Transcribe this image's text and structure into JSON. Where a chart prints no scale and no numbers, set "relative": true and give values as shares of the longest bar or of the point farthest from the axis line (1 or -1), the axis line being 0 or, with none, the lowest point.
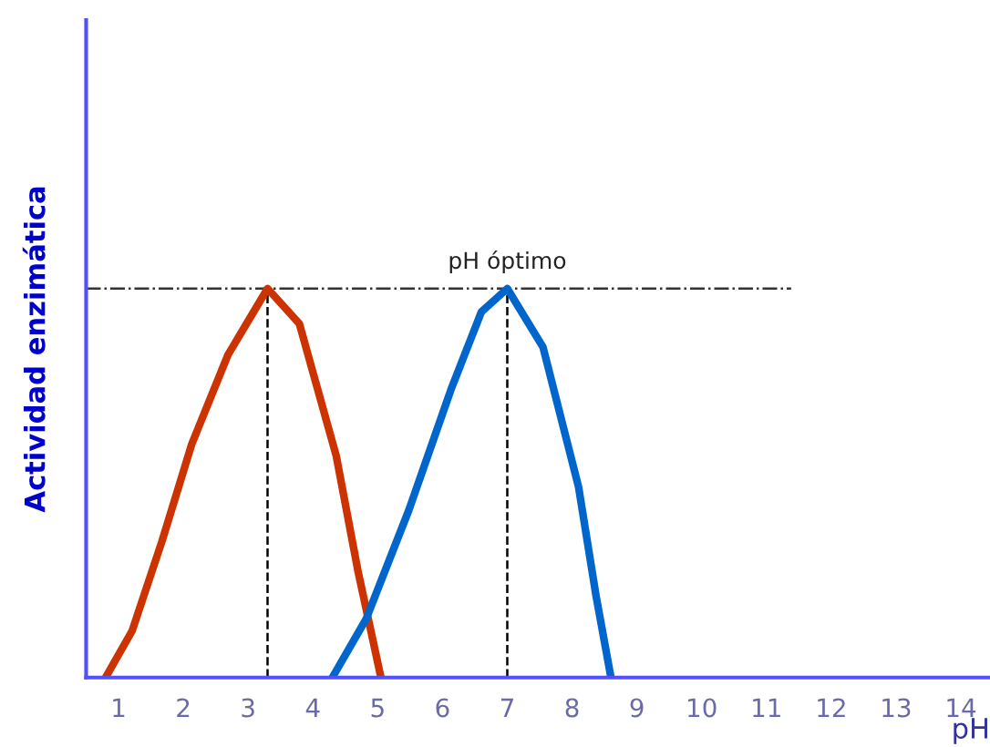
{
  "chart_data": {
    "type": "line",
    "relative": true,
    "xlabel": "pH",
    "ylabel": "Actividad enzimática",
    "xlim": [
      0.5,
      14.45
    ],
    "xticks": [
      1,
      2,
      3,
      4,
      5,
      6,
      7,
      8,
      9,
      10,
      11,
      12,
      13,
      14
    ],
    "tick_labels": "x",
    "grid": false,
    "legend": false,
    "marker": "none",
    "line_style": "solid",
    "series": [
      {
        "color": "#cc3300",
        "x": [
          0.8,
          1.21,
          1.67,
          2.13,
          2.69,
          3.3,
          3.79,
          4.36,
          4.7,
          5.05
        ],
        "values": [
          0,
          0.12,
          0.35,
          0.6,
          0.83,
          1,
          0.91,
          0.57,
          0.27,
          0
        ]
      },
      {
        "color": "#0066cc",
        "x": [
          4.3,
          4.82,
          5.48,
          6.13,
          6.6,
          7,
          7.55,
          8.1,
          8.37,
          8.6
        ],
        "values": [
          0,
          0.15,
          0.43,
          0.74,
          0.94,
          1,
          0.85,
          0.49,
          0.21,
          0
        ]
      }
    ],
    "ref_lines": [
      {
        "axis": "y",
        "value": 1,
        "color": "#333333",
        "line_style": "dashdot"
      },
      {
        "axis": "x",
        "value": 3.3,
        "color": "#000000",
        "line_style": "dashed"
      },
      {
        "axis": "x",
        "value": 7,
        "color": "#000000",
        "line_style": "dashed"
      }
    ],
    "annotations": [
      {
        "text": "pH óptimo",
        "x": 7,
        "y": 1
      }
    ]
  }
}
